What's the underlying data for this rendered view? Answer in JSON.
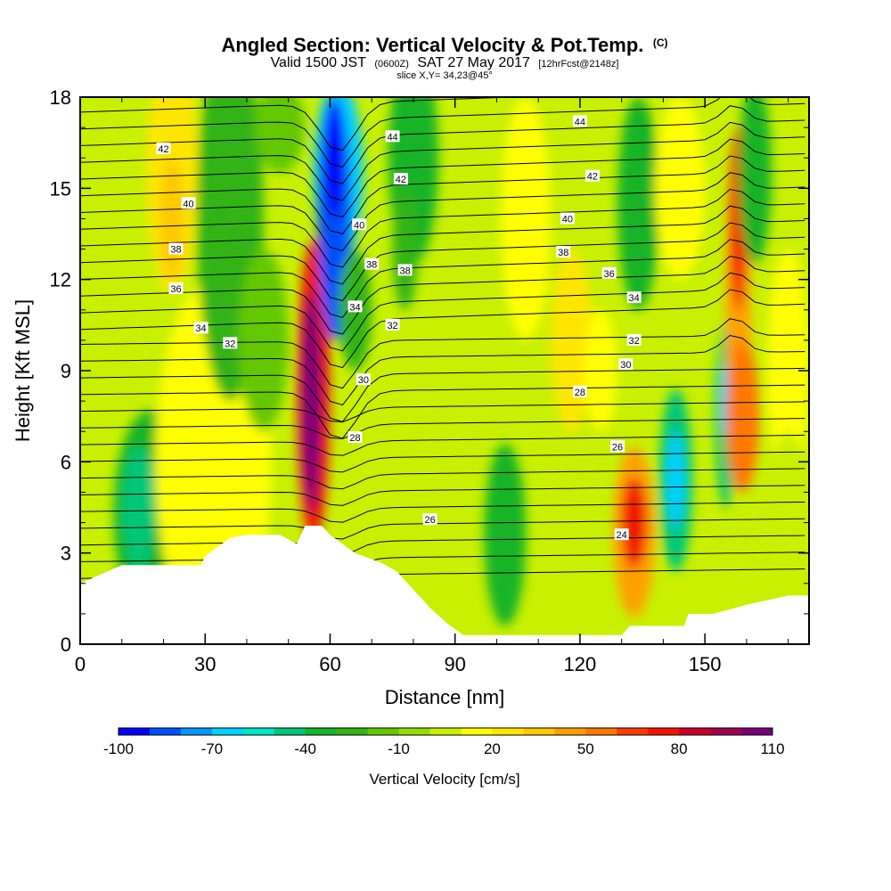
{
  "chart_data": {
    "type": "heatmap",
    "title": "Angled Section: Vertical Velocity & Pot.Temp.",
    "title_mark": "(C)",
    "subtitle_parts": [
      "Valid 1500 JST",
      "(0600Z)",
      "SAT 27 May 2017",
      "[12hrFcst@2148z]"
    ],
    "slice_label": "slice X,Y= 34,23@45°",
    "xlabel": "Distance [nm]",
    "ylabel": "Height [Kft MSL]",
    "xlim": [
      0,
      175
    ],
    "ylim": [
      0,
      18
    ],
    "x_ticks": [
      0,
      30,
      60,
      90,
      120,
      150
    ],
    "y_ticks": [
      0,
      3,
      6,
      9,
      12,
      15,
      18
    ],
    "colorbar": {
      "title": "Vertical Velocity [cm/s]",
      "min": -100,
      "max": 110,
      "step": 10,
      "tick_labels": [
        -100,
        -70,
        -40,
        -10,
        20,
        50,
        80,
        110
      ],
      "colors": [
        "#0000ff",
        "#0050ff",
        "#0096ff",
        "#00d2ff",
        "#00e6c8",
        "#00c878",
        "#14b428",
        "#32b414",
        "#64c800",
        "#96dc00",
        "#c8f000",
        "#ffff00",
        "#ffe600",
        "#ffc800",
        "#ffa000",
        "#ff7800",
        "#ff3c00",
        "#f01400",
        "#c80028",
        "#a00050",
        "#780078"
      ]
    },
    "terrain": [
      [
        0,
        2
      ],
      [
        5,
        2.3
      ],
      [
        10,
        2.6
      ],
      [
        20,
        2.6
      ],
      [
        29,
        2.6
      ],
      [
        30,
        2.9
      ],
      [
        33,
        3.2
      ],
      [
        36,
        3.5
      ],
      [
        40,
        3.6
      ],
      [
        48,
        3.6
      ],
      [
        52,
        3.3
      ],
      [
        54,
        3.9
      ],
      [
        58,
        3.9
      ],
      [
        60,
        3.6
      ],
      [
        63,
        3.3
      ],
      [
        66,
        3
      ],
      [
        72,
        2.7
      ],
      [
        76,
        2.4
      ],
      [
        80,
        1.8
      ],
      [
        84,
        1.2
      ],
      [
        88,
        0.7
      ],
      [
        92,
        0.3
      ],
      [
        100,
        0.3
      ],
      [
        130,
        0.3
      ],
      [
        132,
        0.6
      ],
      [
        145,
        0.6
      ],
      [
        146,
        1
      ],
      [
        152,
        1
      ],
      [
        160,
        1.3
      ],
      [
        170,
        1.6
      ],
      [
        175,
        1.6
      ]
    ],
    "theta_contour_labels": [
      {
        "text": "44",
        "x": 75,
        "y": 16.7
      },
      {
        "text": "44",
        "x": 120,
        "y": 17.2
      },
      {
        "text": "42",
        "x": 20,
        "y": 16.3
      },
      {
        "text": "42",
        "x": 77,
        "y": 15.3
      },
      {
        "text": "42",
        "x": 123,
        "y": 15.4
      },
      {
        "text": "40",
        "x": 26,
        "y": 14.5
      },
      {
        "text": "40",
        "x": 67,
        "y": 13.8
      },
      {
        "text": "40",
        "x": 117,
        "y": 14
      },
      {
        "text": "38",
        "x": 23,
        "y": 13
      },
      {
        "text": "38",
        "x": 70,
        "y": 12.5
      },
      {
        "text": "38",
        "x": 78,
        "y": 12.3
      },
      {
        "text": "38",
        "x": 116,
        "y": 12.9
      },
      {
        "text": "36",
        "x": 23,
        "y": 11.7
      },
      {
        "text": "36",
        "x": 127,
        "y": 12.2
      },
      {
        "text": "34",
        "x": 29,
        "y": 10.4
      },
      {
        "text": "34",
        "x": 66,
        "y": 11.1
      },
      {
        "text": "34",
        "x": 133,
        "y": 11.4
      },
      {
        "text": "32",
        "x": 36,
        "y": 9.9
      },
      {
        "text": "32",
        "x": 75,
        "y": 10.5
      },
      {
        "text": "32",
        "x": 133,
        "y": 10
      },
      {
        "text": "30",
        "x": 68,
        "y": 8.7
      },
      {
        "text": "30",
        "x": 131,
        "y": 9.2
      },
      {
        "text": "28",
        "x": 120,
        "y": 8.3
      },
      {
        "text": "28",
        "x": 66,
        "y": 6.8
      },
      {
        "text": "26",
        "x": 129,
        "y": 6.5
      },
      {
        "text": "26",
        "x": 84,
        "y": 4.1
      },
      {
        "text": "24",
        "x": 130,
        "y": 3.6
      }
    ]
  }
}
